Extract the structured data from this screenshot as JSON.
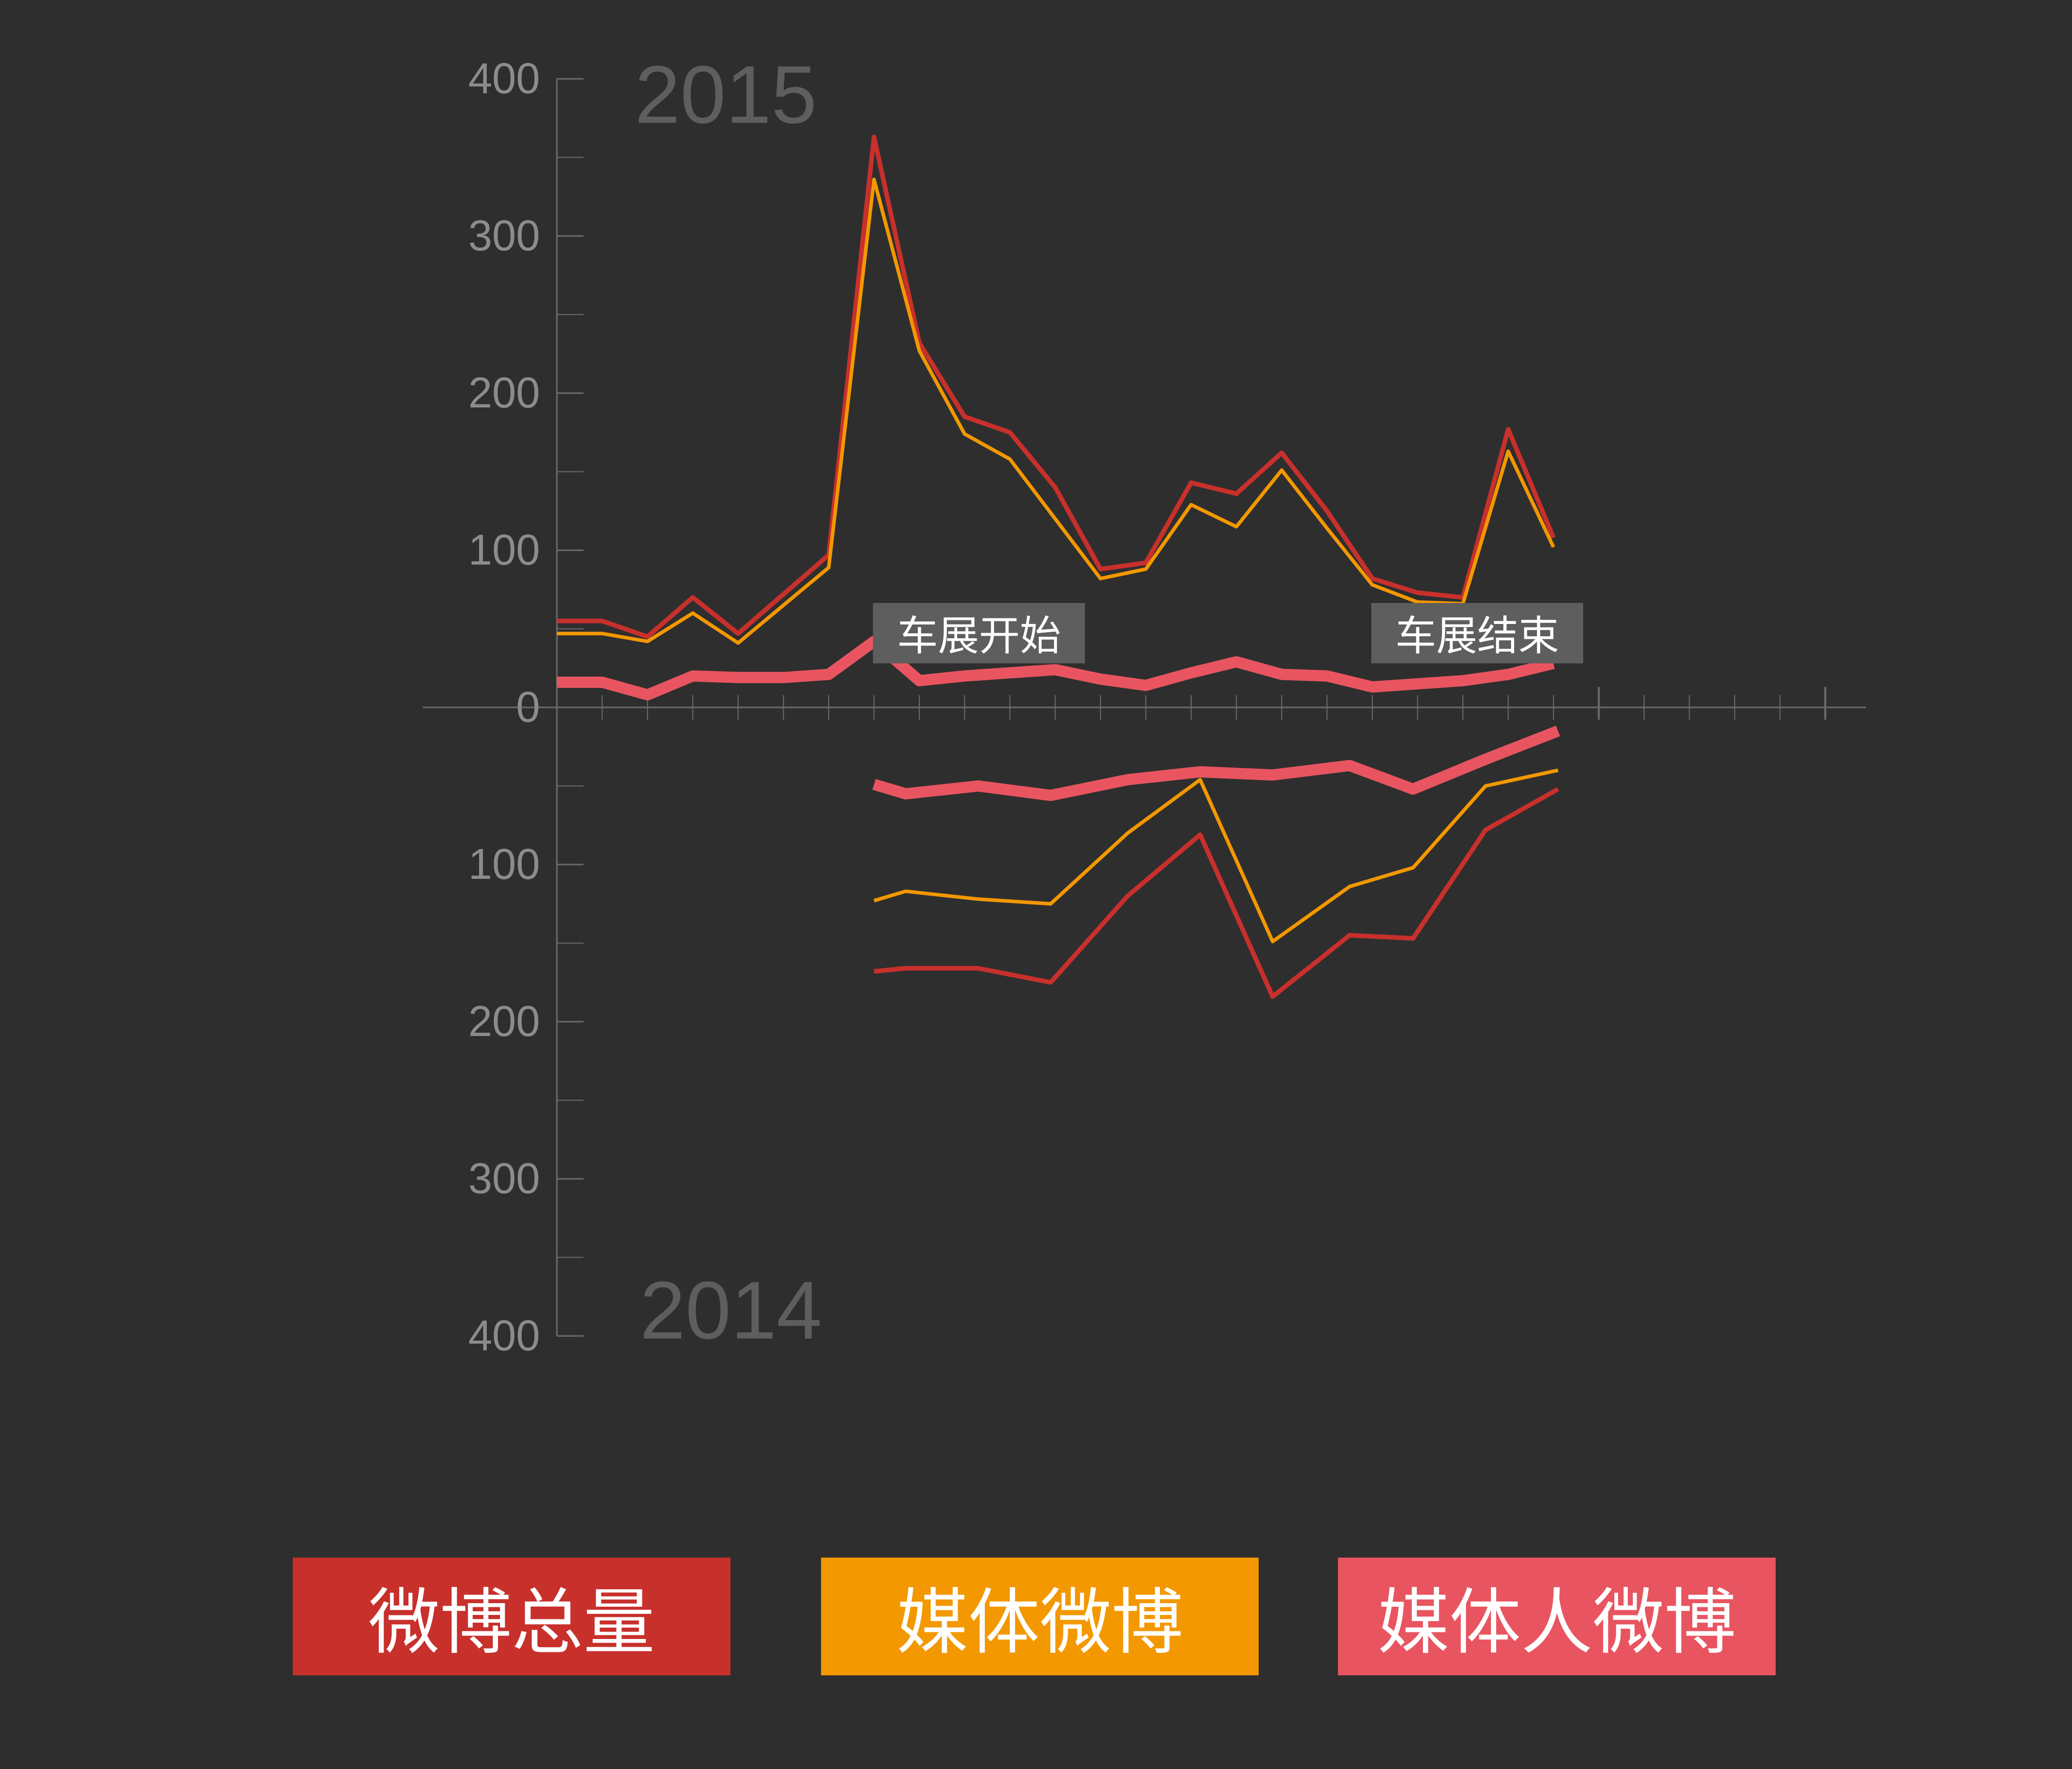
{
  "chart_data": {
    "type": "line",
    "top_panel": {
      "label": "2015",
      "y_ticks": [
        "400",
        "300",
        "200",
        "100",
        "0"
      ],
      "ylim": [
        0,
        400
      ],
      "annotations": [
        {
          "text": "车展开始",
          "x": 7
        },
        {
          "text": "车展结束",
          "x": 18
        }
      ],
      "series": [
        {
          "name": "微博总量",
          "x": [
            0,
            1,
            2,
            3,
            4,
            5,
            6,
            7,
            8,
            9,
            10,
            11,
            12,
            13,
            14,
            15,
            16,
            17,
            18,
            19,
            20,
            21,
            22
          ],
          "values": [
            55,
            55,
            45,
            70,
            47,
            72,
            97,
            363,
            232,
            185,
            175,
            140,
            88,
            92,
            143,
            136,
            162,
            125,
            82,
            73,
            70,
            177,
            108
          ]
        },
        {
          "name": "媒体微博",
          "x": [
            0,
            1,
            2,
            3,
            4,
            5,
            6,
            7,
            8,
            9,
            10,
            11,
            12,
            13,
            14,
            15,
            16,
            17,
            18,
            19,
            20,
            21,
            22
          ],
          "values": [
            47,
            47,
            42,
            60,
            41,
            65,
            89,
            336,
            227,
            174,
            158,
            120,
            82,
            88,
            129,
            115,
            151,
            114,
            78,
            67,
            66,
            163,
            102
          ]
        },
        {
          "name": "媒体人微博",
          "x": [
            0,
            1,
            2,
            3,
            4,
            5,
            6,
            7,
            8,
            9,
            10,
            11,
            12,
            13,
            14,
            15,
            16,
            17,
            18,
            19,
            20,
            21,
            22
          ],
          "values": [
            16,
            16,
            8,
            20,
            19,
            19,
            21,
            42,
            17,
            20,
            22,
            24,
            18,
            14,
            22,
            29,
            21,
            20,
            13,
            15,
            17,
            21,
            28
          ]
        }
      ]
    },
    "bottom_panel": {
      "label": "2014",
      "y_ticks": [
        "100",
        "200",
        "300",
        "400"
      ],
      "ylim": [
        0,
        400
      ],
      "series": [
        {
          "name": "微博总量",
          "x": [
            7,
            7.7,
            9.3,
            10.9,
            12.6,
            14.2,
            15.8,
            17.5,
            18.9,
            20.5,
            22.1
          ],
          "values": [
            168,
            166,
            166,
            175,
            120,
            81,
            184,
            145,
            147,
            78,
            52
          ]
        },
        {
          "name": "媒体微博",
          "x": [
            7,
            7.7,
            9.3,
            10.9,
            12.6,
            14.2,
            15.8,
            17.5,
            18.9,
            20.5,
            22.1
          ],
          "values": [
            123,
            117,
            122,
            125,
            80,
            46,
            149,
            114,
            102,
            50,
            40
          ]
        },
        {
          "name": "媒体人微博",
          "x": [
            7,
            7.7,
            9.3,
            10.9,
            12.6,
            14.2,
            15.8,
            17.5,
            18.9,
            20.5,
            22.1
          ],
          "values": [
            49,
            55,
            50,
            56,
            46,
            41,
            43,
            37,
            52,
            33,
            15
          ]
        }
      ]
    },
    "colors": {
      "total": "#c8302c",
      "media": "#f39800",
      "person": "#e85560",
      "axis": "#6a6a6a",
      "panel_label": "#5e5e5e"
    },
    "legend": [
      {
        "label": "微博总量",
        "color": "#c8302c"
      },
      {
        "label": "媒体微博",
        "color": "#f39800"
      },
      {
        "label": "媒体人微博",
        "color": "#e85560"
      }
    ]
  }
}
